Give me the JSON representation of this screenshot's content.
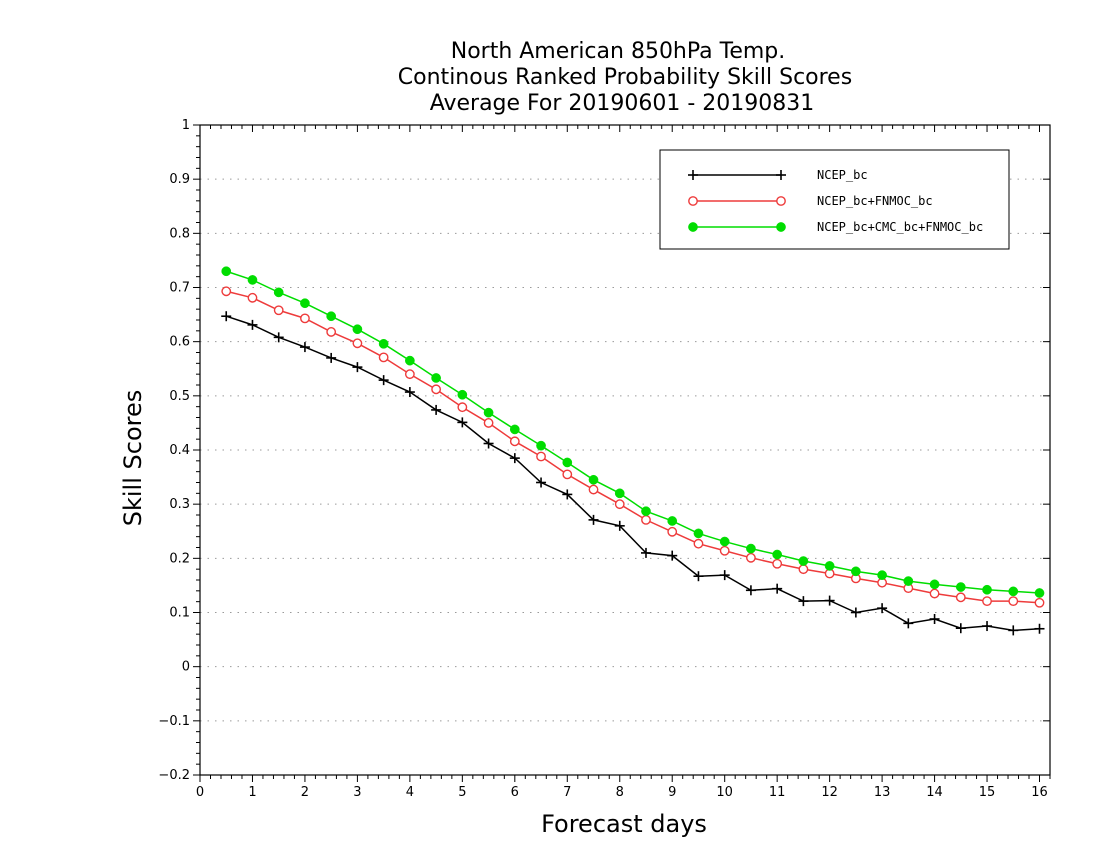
{
  "chart_data": {
    "type": "line",
    "title": [
      "North American 850hPa Temp.",
      "Continous Ranked Probability Skill Scores",
      "Average For 20190601 - 20190831"
    ],
    "xlabel": "Forecast days",
    "ylabel": "Skill Scores",
    "xlim": [
      0,
      16.2
    ],
    "ylim": [
      -0.2,
      1
    ],
    "xticks": [
      0,
      1,
      2,
      3,
      4,
      5,
      6,
      7,
      8,
      9,
      10,
      11,
      12,
      13,
      14,
      15,
      16
    ],
    "yticks": [
      -0.2,
      -0.1,
      0,
      0.1,
      0.2,
      0.3,
      0.4,
      0.5,
      0.6,
      0.7,
      0.8,
      0.9,
      1
    ],
    "ytick_labels": [
      "−0.2",
      "−0.1",
      "0",
      "0.1",
      "0.2",
      "0.3",
      "0.4",
      "0.5",
      "0.6",
      "0.7",
      "0.8",
      "0.9",
      "1"
    ],
    "grid": "horizontal dotted",
    "legend_position": "top-right",
    "x": [
      0.5,
      1,
      1.5,
      2,
      2.5,
      3,
      3.5,
      4,
      4.5,
      5,
      5.5,
      6,
      6.5,
      7,
      7.5,
      8,
      8.5,
      9,
      9.5,
      10,
      10.5,
      11,
      11.5,
      12,
      12.5,
      13,
      13.5,
      14,
      14.5,
      15,
      15.5,
      16
    ],
    "series": [
      {
        "name": "NCEP_bc",
        "color": "#000000",
        "marker": "plus",
        "values": [
          0.647,
          0.631,
          0.608,
          0.59,
          0.57,
          0.553,
          0.529,
          0.507,
          0.474,
          0.451,
          0.412,
          0.385,
          0.34,
          0.318,
          0.271,
          0.26,
          0.21,
          0.205,
          0.167,
          0.169,
          0.141,
          0.144,
          0.121,
          0.122,
          0.1,
          0.108,
          0.08,
          0.088,
          0.071,
          0.075,
          0.067,
          0.07
        ]
      },
      {
        "name": "NCEP_bc+FNMOC_bc",
        "color": "#ee3b3b",
        "marker": "open-circle",
        "values": [
          0.693,
          0.681,
          0.658,
          0.643,
          0.618,
          0.597,
          0.571,
          0.54,
          0.512,
          0.479,
          0.45,
          0.416,
          0.388,
          0.355,
          0.327,
          0.3,
          0.271,
          0.249,
          0.227,
          0.214,
          0.201,
          0.19,
          0.18,
          0.172,
          0.163,
          0.155,
          0.145,
          0.135,
          0.128,
          0.121,
          0.121,
          0.118
        ]
      },
      {
        "name": "NCEP_bc+CMC_bc+FNMOC_bc",
        "color": "#00dd00",
        "marker": "filled-circle",
        "values": [
          0.73,
          0.714,
          0.691,
          0.671,
          0.647,
          0.623,
          0.596,
          0.565,
          0.533,
          0.502,
          0.469,
          0.438,
          0.408,
          0.377,
          0.345,
          0.32,
          0.287,
          0.269,
          0.246,
          0.231,
          0.218,
          0.207,
          0.195,
          0.186,
          0.176,
          0.169,
          0.158,
          0.152,
          0.147,
          0.142,
          0.139,
          0.136
        ]
      }
    ]
  }
}
